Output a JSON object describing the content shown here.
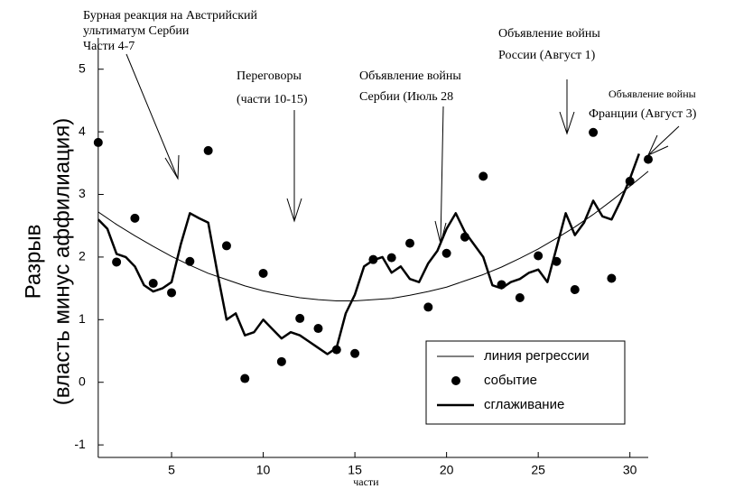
{
  "chart_data": {
    "type": "scatter",
    "ylabel": [
      "Разрыв",
      "(власть минус аффилиация)"
    ],
    "xlabel": "части",
    "xlim": [
      1,
      31
    ],
    "ylim": [
      -1.2,
      5.5
    ],
    "xticks": [
      5,
      10,
      15,
      20,
      25,
      30
    ],
    "yticks": [
      -1,
      0,
      1,
      2,
      3,
      4,
      5
    ],
    "legend": "lower right",
    "series": [
      {
        "name": "линия регрессии",
        "style": "line",
        "width": 1,
        "color": "#000000",
        "x": [
          1,
          2,
          3,
          4,
          5,
          6,
          7,
          8,
          9,
          10,
          11,
          12,
          13,
          14,
          15,
          16,
          17,
          18,
          19,
          20,
          21,
          22,
          23,
          24,
          25,
          26,
          27,
          28,
          29,
          30,
          31
        ],
        "values": [
          2.72,
          2.52,
          2.34,
          2.17,
          2.01,
          1.87,
          1.74,
          1.64,
          1.54,
          1.46,
          1.4,
          1.35,
          1.32,
          1.3,
          1.3,
          1.32,
          1.34,
          1.39,
          1.45,
          1.52,
          1.62,
          1.72,
          1.84,
          1.98,
          2.13,
          2.3,
          2.48,
          2.68,
          2.9,
          3.13,
          3.37
        ]
      },
      {
        "name": "событие",
        "style": "marker",
        "color": "#000000",
        "x": [
          1,
          2,
          3,
          4,
          5,
          6,
          7,
          8,
          9,
          10,
          11,
          12,
          13,
          14,
          15,
          16,
          17,
          18,
          19,
          20,
          21,
          22,
          23,
          24,
          25,
          26,
          27,
          28,
          29,
          30,
          31
        ],
        "values": [
          3.83,
          1.92,
          2.62,
          1.58,
          1.43,
          1.93,
          3.7,
          2.18,
          0.06,
          1.74,
          0.33,
          1.02,
          0.86,
          0.52,
          0.46,
          1.96,
          1.99,
          2.22,
          1.2,
          2.06,
          2.32,
          3.29,
          1.56,
          1.35,
          2.02,
          1.93,
          1.48,
          3.99,
          1.66,
          3.21,
          3.56
        ]
      },
      {
        "name": "сглаживание",
        "style": "line",
        "width": 2.5,
        "color": "#000000",
        "x": [
          1,
          1.5,
          2,
          2.5,
          3,
          3.5,
          4,
          4.5,
          5,
          5.5,
          6,
          6.5,
          7,
          7.5,
          8,
          8.5,
          9,
          9.5,
          10,
          10.5,
          11,
          11.5,
          12,
          12.5,
          13,
          13.5,
          14,
          14.5,
          15,
          15.5,
          16,
          16.5,
          17,
          17.5,
          18,
          18.5,
          19,
          19.5,
          20,
          20.5,
          21,
          21.5,
          22,
          22.5,
          23,
          23.5,
          24,
          24.5,
          25,
          25.5,
          26,
          26.5,
          27,
          27.5,
          28,
          28.5,
          29,
          29.5,
          30,
          30.5
        ],
        "values": [
          2.6,
          2.45,
          2.05,
          2.0,
          1.85,
          1.55,
          1.45,
          1.5,
          1.6,
          2.2,
          2.7,
          2.62,
          2.55,
          1.75,
          1.0,
          1.1,
          0.75,
          0.8,
          1.0,
          0.85,
          0.7,
          0.8,
          0.75,
          0.65,
          0.55,
          0.45,
          0.55,
          1.1,
          1.4,
          1.85,
          1.95,
          2.0,
          1.75,
          1.85,
          1.65,
          1.6,
          1.9,
          2.1,
          2.45,
          2.7,
          2.4,
          2.2,
          2.0,
          1.55,
          1.5,
          1.6,
          1.65,
          1.75,
          1.8,
          1.6,
          2.15,
          2.7,
          2.35,
          2.55,
          2.9,
          2.65,
          2.6,
          2.9,
          3.25,
          3.65
        ]
      }
    ],
    "annotations": [
      {
        "lines": [
          "Бурная реакция на Австрийский",
          "ультиматум Сербии",
          "Части 4-7"
        ]
      },
      {
        "lines": [
          "Переговоры",
          "(части 10-15)"
        ]
      },
      {
        "lines": [
          "Объявление войны",
          "Сербии (Июль 28"
        ]
      },
      {
        "lines": [
          "Объявление войны",
          "России (Август 1)"
        ]
      },
      {
        "lines": [
          "Объявление войны",
          "Франции (Август 3)"
        ]
      }
    ]
  }
}
